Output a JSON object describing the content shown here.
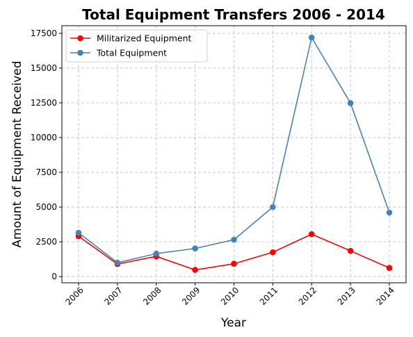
{
  "chart_data": {
    "type": "line",
    "title": "Total Equipment Transfers 2006 - 2014",
    "xlabel": "Year",
    "ylabel": "Amount of Equipment Received",
    "x": [
      "2006",
      "2007",
      "2008",
      "2009",
      "2010",
      "2011",
      "2012",
      "2013",
      "2014"
    ],
    "yticks": [
      0,
      2500,
      5000,
      7500,
      10000,
      12500,
      15000,
      17500
    ],
    "ylim": [
      -450,
      18050
    ],
    "grid": true,
    "legend_position": "top-left",
    "series": [
      {
        "name": "Militarized Equipment",
        "color": "#ff0000",
        "values": [
          2900,
          900,
          1450,
          480,
          920,
          1750,
          3050,
          1850,
          620
        ]
      },
      {
        "name": "Total Equipment",
        "color": "#4682b4",
        "values": [
          3150,
          1000,
          1650,
          2020,
          2650,
          5000,
          17200,
          12480,
          4600
        ]
      }
    ]
  }
}
